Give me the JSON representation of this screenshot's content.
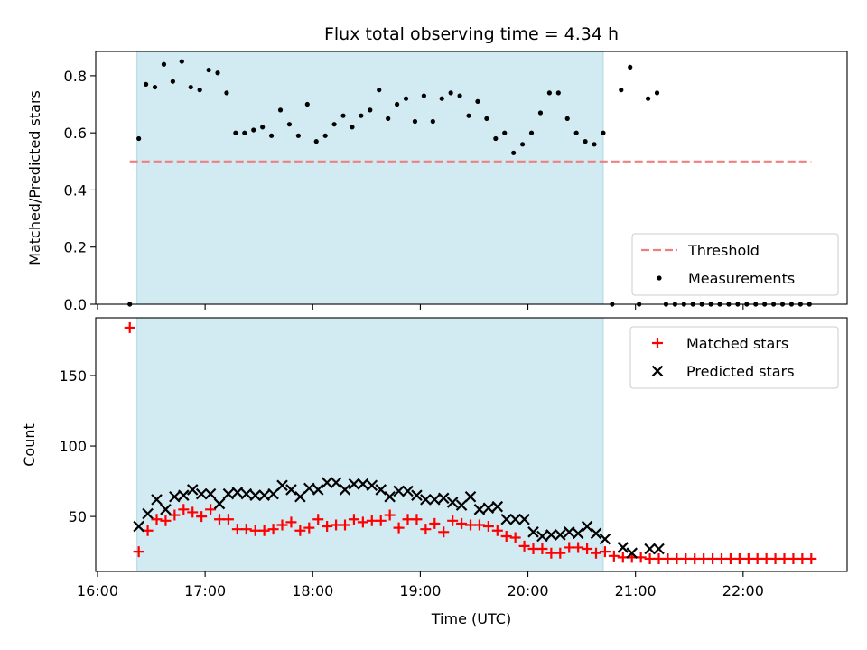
{
  "chart_data": [
    {
      "type": "scatter",
      "title": "Flux total observing time = 4.34 h",
      "xlabel": "",
      "ylabel": "Matched/Predicted stars",
      "xlim": [
        "15:59",
        "22:58"
      ],
      "ylim": [
        0,
        0.885
      ],
      "yticks": [
        0.0,
        0.2,
        0.4,
        0.6,
        0.8
      ],
      "yticklabels": [
        "0.0",
        "0.2",
        "0.4",
        "0.6",
        "0.8"
      ],
      "xticks": [
        "16:00",
        "17:00",
        "18:00",
        "19:00",
        "20:00",
        "21:00",
        "22:00"
      ],
      "show_xticklabels": false,
      "grid": false,
      "legend": "bottom-right",
      "shaded_span": {
        "start": "16:22",
        "end": "20:42",
        "color": "#add8e6"
      },
      "series": [
        {
          "name": "Threshold",
          "kind": "line",
          "style": "dashed",
          "color": "#f08080",
          "points": [
            [
              "16:18",
              0.5
            ],
            [
              "22:38",
              0.5
            ]
          ]
        },
        {
          "name": "Measurements",
          "kind": "dots",
          "color": "#000000",
          "points": [
            [
              "16:18",
              0.0
            ],
            [
              "16:23",
              0.58
            ],
            [
              "16:27",
              0.77
            ],
            [
              "16:32",
              0.76
            ],
            [
              "16:37",
              0.84
            ],
            [
              "16:42",
              0.78
            ],
            [
              "16:47",
              0.85
            ],
            [
              "16:52",
              0.76
            ],
            [
              "16:57",
              0.75
            ],
            [
              "17:02",
              0.82
            ],
            [
              "17:07",
              0.81
            ],
            [
              "17:12",
              0.74
            ],
            [
              "17:17",
              0.6
            ],
            [
              "17:22",
              0.6
            ],
            [
              "17:27",
              0.61
            ],
            [
              "17:32",
              0.62
            ],
            [
              "17:37",
              0.59
            ],
            [
              "17:42",
              0.68
            ],
            [
              "17:47",
              0.63
            ],
            [
              "17:52",
              0.59
            ],
            [
              "17:57",
              0.7
            ],
            [
              "18:02",
              0.57
            ],
            [
              "18:07",
              0.59
            ],
            [
              "18:12",
              0.63
            ],
            [
              "18:17",
              0.66
            ],
            [
              "18:22",
              0.62
            ],
            [
              "18:27",
              0.66
            ],
            [
              "18:32",
              0.68
            ],
            [
              "18:37",
              0.75
            ],
            [
              "18:42",
              0.65
            ],
            [
              "18:47",
              0.7
            ],
            [
              "18:52",
              0.72
            ],
            [
              "18:57",
              0.64
            ],
            [
              "19:02",
              0.73
            ],
            [
              "19:07",
              0.64
            ],
            [
              "19:12",
              0.72
            ],
            [
              "19:17",
              0.74
            ],
            [
              "19:22",
              0.73
            ],
            [
              "19:27",
              0.66
            ],
            [
              "19:32",
              0.71
            ],
            [
              "19:37",
              0.65
            ],
            [
              "19:42",
              0.58
            ],
            [
              "19:47",
              0.6
            ],
            [
              "19:52",
              0.53
            ],
            [
              "19:57",
              0.56
            ],
            [
              "20:02",
              0.6
            ],
            [
              "20:07",
              0.67
            ],
            [
              "20:12",
              0.74
            ],
            [
              "20:17",
              0.74
            ],
            [
              "20:22",
              0.65
            ],
            [
              "20:27",
              0.6
            ],
            [
              "20:32",
              0.57
            ],
            [
              "20:37",
              0.56
            ],
            [
              "20:42",
              0.6
            ],
            [
              "20:47",
              0.0
            ],
            [
              "20:52",
              0.75
            ],
            [
              "20:57",
              0.83
            ],
            [
              "21:02",
              0.0
            ],
            [
              "21:07",
              0.72
            ],
            [
              "21:12",
              0.74
            ],
            [
              "21:17",
              0.0
            ],
            [
              "21:22",
              0.0
            ],
            [
              "21:27",
              0.0
            ],
            [
              "21:32",
              0.0
            ],
            [
              "21:37",
              0.0
            ],
            [
              "21:42",
              0.0
            ],
            [
              "21:47",
              0.0
            ],
            [
              "21:52",
              0.0
            ],
            [
              "21:57",
              0.0
            ],
            [
              "22:02",
              0.0
            ],
            [
              "22:07",
              0.0
            ],
            [
              "22:12",
              0.0
            ],
            [
              "22:17",
              0.0
            ],
            [
              "22:22",
              0.0
            ],
            [
              "22:27",
              0.0
            ],
            [
              "22:32",
              0.0
            ],
            [
              "22:37",
              0.0
            ]
          ]
        }
      ]
    },
    {
      "type": "scatter",
      "title": "",
      "xlabel": "Time (UTC)",
      "ylabel": "Count",
      "xlim": [
        "15:59",
        "22:58"
      ],
      "ylim": [
        11,
        191
      ],
      "yticks": [
        50,
        100,
        150
      ],
      "yticklabels": [
        "50",
        "100",
        "150"
      ],
      "xticks": [
        "16:00",
        "17:00",
        "18:00",
        "19:00",
        "20:00",
        "21:00",
        "22:00"
      ],
      "xticklabels": [
        "16:00",
        "17:00",
        "18:00",
        "19:00",
        "20:00",
        "21:00",
        "22:00"
      ],
      "show_xticklabels": true,
      "grid": false,
      "legend": "top-right",
      "shaded_span": {
        "start": "16:22",
        "end": "20:42",
        "color": "#add8e6"
      },
      "series": [
        {
          "name": "Matched stars",
          "kind": "plus",
          "color": "#ff0000",
          "points": [
            [
              "16:18",
              184
            ],
            [
              "16:23",
              25
            ],
            [
              "16:28",
              40
            ],
            [
              "16:33",
              48
            ],
            [
              "16:38",
              47
            ],
            [
              "16:43",
              51
            ],
            [
              "16:48",
              55
            ],
            [
              "16:53",
              53
            ],
            [
              "16:58",
              50
            ],
            [
              "17:03",
              55
            ],
            [
              "17:08",
              48
            ],
            [
              "17:13",
              48
            ],
            [
              "17:18",
              41
            ],
            [
              "17:23",
              41
            ],
            [
              "17:28",
              40
            ],
            [
              "17:33",
              40
            ],
            [
              "17:38",
              41
            ],
            [
              "17:43",
              44
            ],
            [
              "17:48",
              46
            ],
            [
              "17:53",
              40
            ],
            [
              "17:58",
              42
            ],
            [
              "18:03",
              48
            ],
            [
              "18:08",
              43
            ],
            [
              "18:13",
              44
            ],
            [
              "18:18",
              44
            ],
            [
              "18:23",
              48
            ],
            [
              "18:28",
              46
            ],
            [
              "18:33",
              47
            ],
            [
              "18:38",
              47
            ],
            [
              "18:43",
              51
            ],
            [
              "18:48",
              42
            ],
            [
              "18:53",
              48
            ],
            [
              "18:58",
              48
            ],
            [
              "19:03",
              41
            ],
            [
              "19:08",
              45
            ],
            [
              "19:13",
              39
            ],
            [
              "19:18",
              47
            ],
            [
              "19:23",
              45
            ],
            [
              "19:28",
              44
            ],
            [
              "19:33",
              44
            ],
            [
              "19:38",
              43
            ],
            [
              "19:43",
              40
            ],
            [
              "19:48",
              36
            ],
            [
              "19:53",
              35
            ],
            [
              "19:58",
              29
            ],
            [
              "20:03",
              27
            ],
            [
              "20:08",
              27
            ],
            [
              "20:13",
              24
            ],
            [
              "20:18",
              24
            ],
            [
              "20:23",
              28
            ],
            [
              "20:28",
              28
            ],
            [
              "20:33",
              27
            ],
            [
              "20:38",
              24
            ],
            [
              "20:43",
              25
            ],
            [
              "20:48",
              22
            ],
            [
              "20:53",
              21
            ],
            [
              "20:58",
              21
            ],
            [
              "21:03",
              21
            ],
            [
              "21:08",
              20
            ],
            [
              "21:13",
              20
            ],
            [
              "21:18",
              20
            ],
            [
              "21:23",
              20
            ],
            [
              "21:28",
              20
            ],
            [
              "21:33",
              20
            ],
            [
              "21:38",
              20
            ],
            [
              "21:43",
              20
            ],
            [
              "21:48",
              20
            ],
            [
              "21:53",
              20
            ],
            [
              "21:58",
              20
            ],
            [
              "22:03",
              20
            ],
            [
              "22:08",
              20
            ],
            [
              "22:13",
              20
            ],
            [
              "22:18",
              20
            ],
            [
              "22:23",
              20
            ],
            [
              "22:28",
              20
            ],
            [
              "22:33",
              20
            ],
            [
              "22:38",
              20
            ]
          ]
        },
        {
          "name": "Predicted stars",
          "kind": "cross",
          "color": "#000000",
          "points": [
            [
              "16:23",
              43
            ],
            [
              "16:28",
              52
            ],
            [
              "16:33",
              62
            ],
            [
              "16:38",
              55
            ],
            [
              "16:43",
              64
            ],
            [
              "16:48",
              65
            ],
            [
              "16:53",
              69
            ],
            [
              "16:58",
              66
            ],
            [
              "17:03",
              66
            ],
            [
              "17:08",
              59
            ],
            [
              "17:13",
              66
            ],
            [
              "17:18",
              67
            ],
            [
              "17:23",
              66
            ],
            [
              "17:28",
              65
            ],
            [
              "17:33",
              65
            ],
            [
              "17:38",
              66
            ],
            [
              "17:43",
              72
            ],
            [
              "17:48",
              69
            ],
            [
              "17:53",
              64
            ],
            [
              "17:58",
              70
            ],
            [
              "18:03",
              69
            ],
            [
              "18:08",
              74
            ],
            [
              "18:13",
              74
            ],
            [
              "18:18",
              69
            ],
            [
              "18:23",
              73
            ],
            [
              "18:28",
              73
            ],
            [
              "18:33",
              72
            ],
            [
              "18:38",
              69
            ],
            [
              "18:43",
              64
            ],
            [
              "18:48",
              68
            ],
            [
              "18:53",
              68
            ],
            [
              "18:58",
              65
            ],
            [
              "19:03",
              62
            ],
            [
              "19:08",
              62
            ],
            [
              "19:13",
              63
            ],
            [
              "19:18",
              60
            ],
            [
              "19:23",
              58
            ],
            [
              "19:28",
              64
            ],
            [
              "19:33",
              55
            ],
            [
              "19:38",
              56
            ],
            [
              "19:43",
              57
            ],
            [
              "19:48",
              48
            ],
            [
              "19:53",
              48
            ],
            [
              "19:58",
              48
            ],
            [
              "20:03",
              39
            ],
            [
              "20:08",
              36
            ],
            [
              "20:13",
              37
            ],
            [
              "20:18",
              37
            ],
            [
              "20:23",
              39
            ],
            [
              "20:28",
              38
            ],
            [
              "20:33",
              43
            ],
            [
              "20:38",
              38
            ],
            [
              "20:43",
              34
            ],
            [
              "20:53",
              28
            ],
            [
              "20:58",
              24
            ],
            [
              "21:08",
              27
            ],
            [
              "21:13",
              27
            ]
          ]
        }
      ]
    }
  ]
}
